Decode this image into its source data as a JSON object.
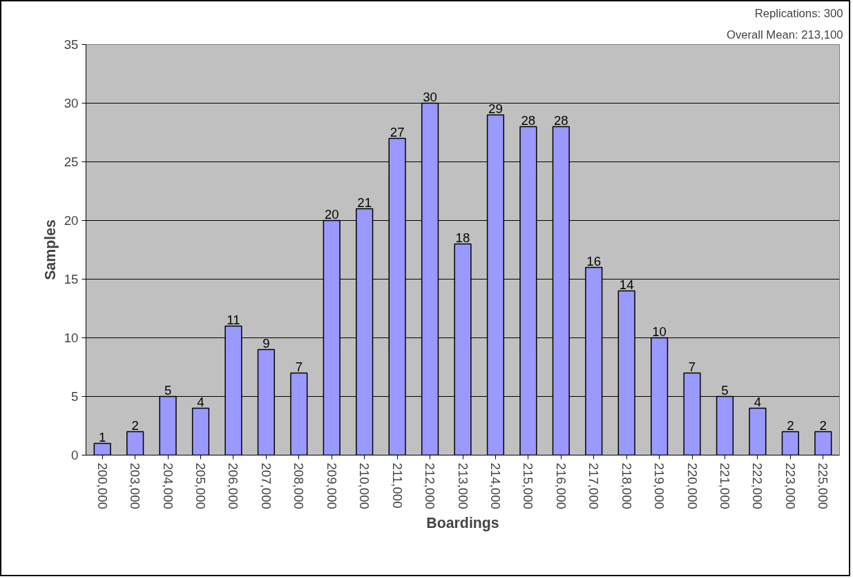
{
  "chart_data": {
    "type": "bar",
    "xlabel": "Boardings",
    "ylabel": "Samples",
    "categories": [
      "200,000",
      "203,000",
      "204,000",
      "205,000",
      "206,000",
      "207,000",
      "208,000",
      "209,000",
      "210,000",
      "211,000",
      "212,000",
      "213,000",
      "214,000",
      "215,000",
      "216,000",
      "217,000",
      "218,000",
      "219,000",
      "220,000",
      "221,000",
      "222,000",
      "223,000",
      "225,000"
    ],
    "values": [
      1,
      2,
      5,
      4,
      11,
      9,
      7,
      20,
      21,
      27,
      30,
      18,
      29,
      28,
      28,
      16,
      14,
      10,
      7,
      5,
      4,
      2,
      2
    ],
    "color": "#9999ff",
    "ylim": [
      0,
      35
    ],
    "yticks": [
      0,
      5,
      10,
      15,
      20,
      25,
      30,
      35
    ],
    "grid": "y",
    "data_labels": true,
    "annotations": [
      "Replications: 300",
      "Overall Mean: 213,100"
    ]
  }
}
